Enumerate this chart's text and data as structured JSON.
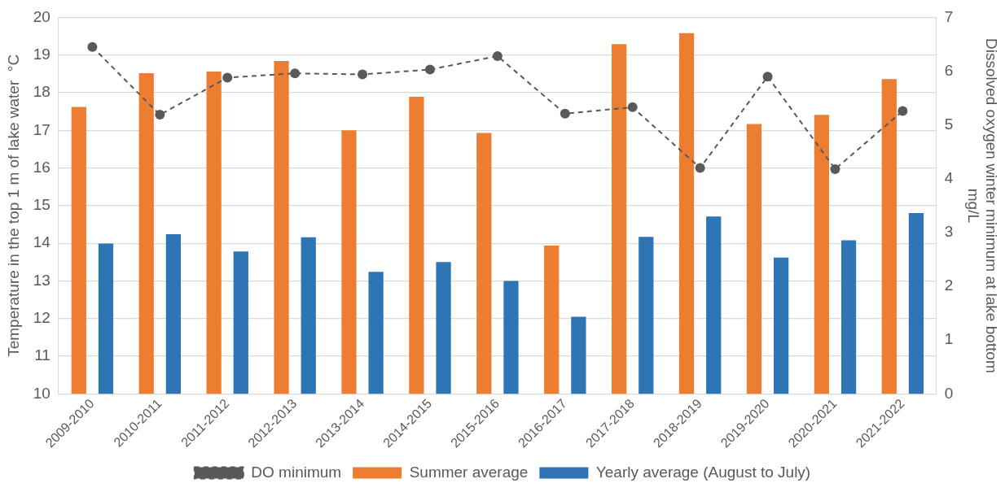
{
  "chart_data": {
    "type": "bar",
    "categories": [
      "2009-2010",
      "2010-2011",
      "2011-2012",
      "2012-2013",
      "2013-2014",
      "2014-2015",
      "2015-2016",
      "2016-2017",
      "2017-2018",
      "2018-2019",
      "2019-2020",
      "2020-2021",
      "2021-2022"
    ],
    "series": [
      {
        "name": "Summer average",
        "color": "#ed7d31",
        "values": [
          17.62,
          18.52,
          18.56,
          18.84,
          17.0,
          17.89,
          16.93,
          13.94,
          19.29,
          19.58,
          17.17,
          17.41,
          18.36
        ]
      },
      {
        "name": "Yearly average (August to July)",
        "color": "#2e75b6",
        "values": [
          13.99,
          14.24,
          13.78,
          14.16,
          13.24,
          13.5,
          13.0,
          12.05,
          14.17,
          14.71,
          13.62,
          14.08,
          14.8
        ]
      },
      {
        "name": "DO minimum",
        "type": "line",
        "axis": "y2",
        "color": "#595959",
        "marker": "circle",
        "line_style": "dashed",
        "values": [
          6.45,
          5.19,
          5.88,
          5.96,
          5.94,
          6.03,
          6.28,
          5.21,
          5.33,
          4.2,
          5.9,
          4.18,
          5.26
        ]
      }
    ],
    "ylabel": "Temperature in the top 1 m of lake water  °C",
    "y2label": "Dissolved oxygen winter minimum at lake bottom\nmg/L",
    "ylim": [
      10,
      20
    ],
    "yticks": [
      10,
      11,
      12,
      13,
      14,
      15,
      16,
      17,
      18,
      19,
      20
    ],
    "y2lim": [
      0,
      7
    ],
    "y2ticks": [
      0,
      1,
      2,
      3,
      4,
      5,
      6,
      7
    ],
    "grid": "y",
    "legend": "bottom"
  }
}
